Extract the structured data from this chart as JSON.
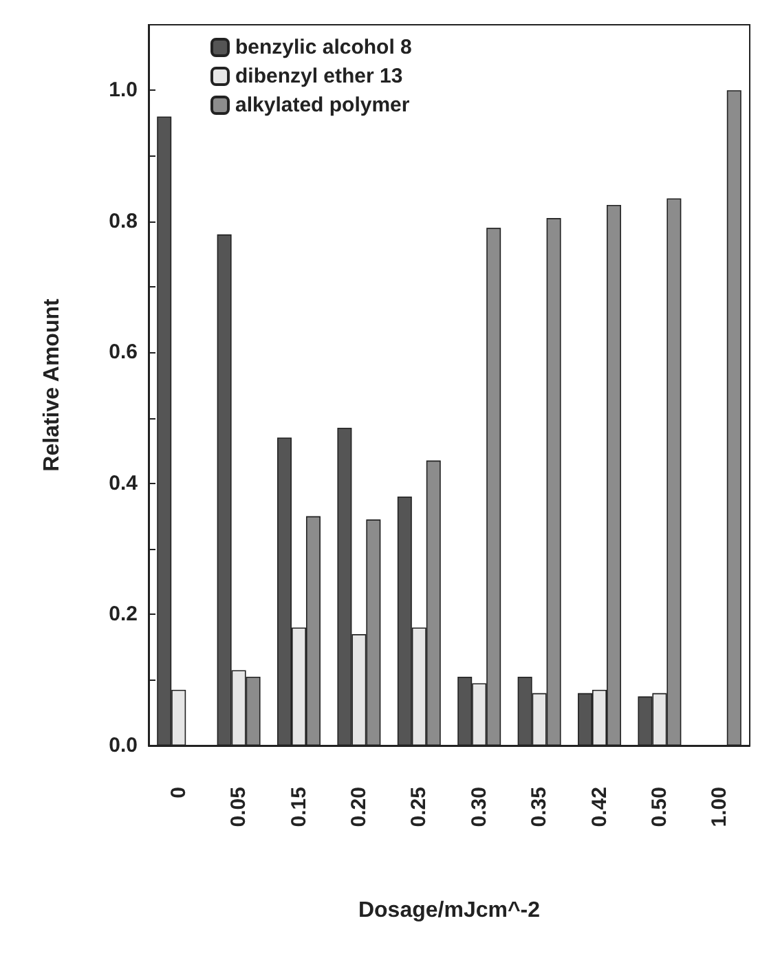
{
  "chart_data": {
    "type": "bar",
    "xlabel": "Dosage/mJcm^-2",
    "ylabel": "Relative Amount",
    "categories": [
      "0",
      "0.05",
      "0.15",
      "0.20",
      "0.25",
      "0.30",
      "0.35",
      "0.42",
      "0.50",
      "1.00"
    ],
    "series": [
      {
        "name": "benzylic alcohol 8",
        "color": "#555555",
        "values": [
          0.96,
          0.78,
          0.47,
          0.485,
          0.38,
          0.105,
          0.105,
          0.08,
          0.075,
          0
        ]
      },
      {
        "name": "dibenzyl ether 13",
        "color": "#e6e6e6",
        "values": [
          0.085,
          0.115,
          0.18,
          0.17,
          0.18,
          0.095,
          0.08,
          0.085,
          0.08,
          0
        ]
      },
      {
        "name": "alkylated polymer",
        "color": "#8c8c8c",
        "values": [
          0,
          0.105,
          0.35,
          0.345,
          0.435,
          0.79,
          0.805,
          0.825,
          0.835,
          1.0
        ]
      }
    ],
    "ylim": [
      0,
      1.1
    ],
    "yticks": [
      {
        "value": 0,
        "label": "0.0"
      },
      {
        "value": 0.1,
        "label": null
      },
      {
        "value": 0.2,
        "label": "0.2"
      },
      {
        "value": 0.3,
        "label": null
      },
      {
        "value": 0.4,
        "label": "0.4"
      },
      {
        "value": 0.5,
        "label": null
      },
      {
        "value": 0.6,
        "label": "0.6"
      },
      {
        "value": 0.7,
        "label": null
      },
      {
        "value": 0.8,
        "label": "0.8"
      },
      {
        "value": 0.9,
        "label": null
      },
      {
        "value": 1.0,
        "label": "1.0"
      }
    ],
    "legend": "top left",
    "grid": false
  }
}
